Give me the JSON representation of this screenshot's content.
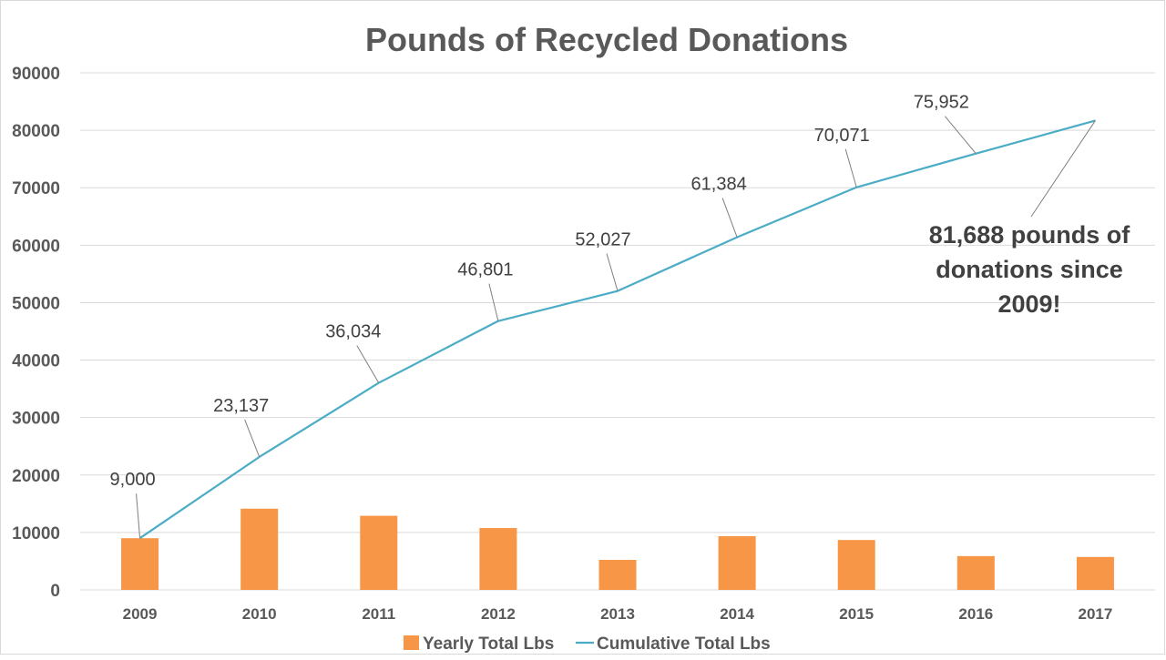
{
  "chart_data": {
    "type": "bar",
    "title": "Pounds of Recycled Donations",
    "categories": [
      "2009",
      "2010",
      "2011",
      "2012",
      "2013",
      "2014",
      "2015",
      "2016",
      "2017"
    ],
    "series": [
      {
        "name": "Yearly Total Lbs",
        "type": "bar",
        "color": "#F79646",
        "values": [
          9000,
          14137,
          12897,
          10767,
          5226,
          9357,
          8687,
          5881,
          5736
        ]
      },
      {
        "name": "Cumulative Total Lbs",
        "type": "line",
        "color": "#4BACC6",
        "values": [
          9000,
          23137,
          36034,
          46801,
          52027,
          61384,
          70071,
          75952,
          81688
        ],
        "data_labels": [
          "9,000",
          "23,137",
          "36,034",
          "46,801",
          "52,027",
          "61,384",
          "70,071",
          "75,952",
          ""
        ]
      }
    ],
    "ylim": [
      0,
      90000
    ],
    "yticks": [
      0,
      10000,
      20000,
      30000,
      40000,
      50000,
      60000,
      70000,
      80000,
      90000
    ],
    "ytick_labels": [
      "0",
      "10000",
      "20000",
      "30000",
      "40000",
      "50000",
      "60000",
      "70000",
      "80000",
      "90000"
    ],
    "grid": true,
    "legend_position": "bottom",
    "annotation": {
      "lines": [
        "81,688 pounds of",
        "donations since",
        "2009!"
      ],
      "target_index": 8
    },
    "colors": {
      "grid": "#D9D9D9",
      "axis_text": "#595959",
      "title": "#595959",
      "label_text": "#404040",
      "leader": "#7F7F7F"
    }
  }
}
